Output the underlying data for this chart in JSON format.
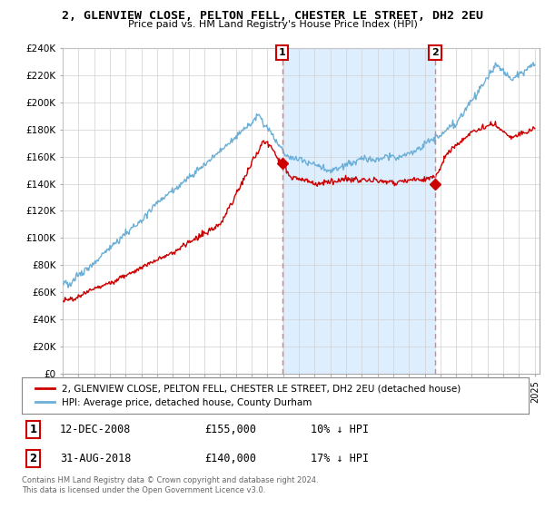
{
  "title": "2, GLENVIEW CLOSE, PELTON FELL, CHESTER LE STREET, DH2 2EU",
  "subtitle": "Price paid vs. HM Land Registry's House Price Index (HPI)",
  "legend_line1": "2, GLENVIEW CLOSE, PELTON FELL, CHESTER LE STREET, DH2 2EU (detached house)",
  "legend_line2": "HPI: Average price, detached house, County Durham",
  "footer": "Contains HM Land Registry data © Crown copyright and database right 2024.\nThis data is licensed under the Open Government Licence v3.0.",
  "hpi_color": "#6baed6",
  "price_color": "#cc0000",
  "vline_color": "#e08080",
  "shade_color": "#ddeeff",
  "background_color": "#ffffff",
  "fig_bg": "#ffffff",
  "ylim": [
    0,
    240000
  ],
  "ytick_vals": [
    0,
    20000,
    40000,
    60000,
    80000,
    100000,
    120000,
    140000,
    160000,
    180000,
    200000,
    220000,
    240000
  ],
  "ytick_labels": [
    "£0",
    "£20K",
    "£40K",
    "£60K",
    "£80K",
    "£100K",
    "£120K",
    "£140K",
    "£160K",
    "£180K",
    "£200K",
    "£220K",
    "£240K"
  ],
  "xmin": 1995,
  "xmax": 2025,
  "sale1_year": 2008.95,
  "sale2_year": 2018.67,
  "sale1_price": 155000,
  "sale2_price": 140000
}
